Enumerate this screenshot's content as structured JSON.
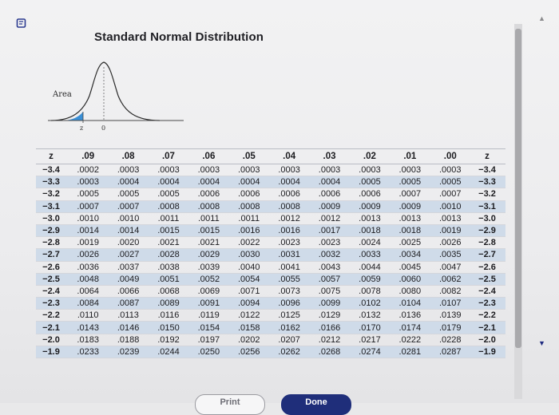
{
  "header": {
    "title": "Standard Normal Distribution",
    "curve_area_label": "Area",
    "curve_z_label": "z",
    "curve_zero_label": "0"
  },
  "table": {
    "columns": [
      "z",
      ".09",
      ".08",
      ".07",
      ".06",
      ".05",
      ".04",
      ".03",
      ".02",
      ".01",
      ".00",
      "z"
    ],
    "rows": [
      {
        "z": "−3.4",
        "values": [
          ".0002",
          ".0003",
          ".0003",
          ".0003",
          ".0003",
          ".0003",
          ".0003",
          ".0003",
          ".0003",
          ".0003"
        ],
        "z_right": "−3.4",
        "highlight": false
      },
      {
        "z": "−3.3",
        "values": [
          ".0003",
          ".0004",
          ".0004",
          ".0004",
          ".0004",
          ".0004",
          ".0004",
          ".0005",
          ".0005",
          ".0005"
        ],
        "z_right": "−3.3",
        "highlight": true
      },
      {
        "z": "−3.2",
        "values": [
          ".0005",
          ".0005",
          ".0005",
          ".0006",
          ".0006",
          ".0006",
          ".0006",
          ".0006",
          ".0007",
          ".0007"
        ],
        "z_right": "−3.2",
        "highlight": false
      },
      {
        "z": "−3.1",
        "values": [
          ".0007",
          ".0007",
          ".0008",
          ".0008",
          ".0008",
          ".0008",
          ".0009",
          ".0009",
          ".0009",
          ".0010"
        ],
        "z_right": "−3.1",
        "highlight": true
      },
      {
        "z": "−3.0",
        "values": [
          ".0010",
          ".0010",
          ".0011",
          ".0011",
          ".0011",
          ".0012",
          ".0012",
          ".0013",
          ".0013",
          ".0013"
        ],
        "z_right": "−3.0",
        "highlight": false
      },
      {
        "z": "−2.9",
        "values": [
          ".0014",
          ".0014",
          ".0015",
          ".0015",
          ".0016",
          ".0016",
          ".0017",
          ".0018",
          ".0018",
          ".0019"
        ],
        "z_right": "−2.9",
        "highlight": true
      },
      {
        "z": "−2.8",
        "values": [
          ".0019",
          ".0020",
          ".0021",
          ".0021",
          ".0022",
          ".0023",
          ".0023",
          ".0024",
          ".0025",
          ".0026"
        ],
        "z_right": "−2.8",
        "highlight": false
      },
      {
        "z": "−2.7",
        "values": [
          ".0026",
          ".0027",
          ".0028",
          ".0029",
          ".0030",
          ".0031",
          ".0032",
          ".0033",
          ".0034",
          ".0035"
        ],
        "z_right": "−2.7",
        "highlight": true
      },
      {
        "z": "−2.6",
        "values": [
          ".0036",
          ".0037",
          ".0038",
          ".0039",
          ".0040",
          ".0041",
          ".0043",
          ".0044",
          ".0045",
          ".0047"
        ],
        "z_right": "−2.6",
        "highlight": false
      },
      {
        "z": "−2.5",
        "values": [
          ".0048",
          ".0049",
          ".0051",
          ".0052",
          ".0054",
          ".0055",
          ".0057",
          ".0059",
          ".0060",
          ".0062"
        ],
        "z_right": "−2.5",
        "highlight": true
      },
      {
        "z": "−2.4",
        "values": [
          ".0064",
          ".0066",
          ".0068",
          ".0069",
          ".0071",
          ".0073",
          ".0075",
          ".0078",
          ".0080",
          ".0082"
        ],
        "z_right": "−2.4",
        "highlight": false
      },
      {
        "z": "−2.3",
        "values": [
          ".0084",
          ".0087",
          ".0089",
          ".0091",
          ".0094",
          ".0096",
          ".0099",
          ".0102",
          ".0104",
          ".0107"
        ],
        "z_right": "−2.3",
        "highlight": true
      },
      {
        "z": "−2.2",
        "values": [
          ".0110",
          ".0113",
          ".0116",
          ".0119",
          ".0122",
          ".0125",
          ".0129",
          ".0132",
          ".0136",
          ".0139"
        ],
        "z_right": "−2.2",
        "highlight": false
      },
      {
        "z": "−2.1",
        "values": [
          ".0143",
          ".0146",
          ".0150",
          ".0154",
          ".0158",
          ".0162",
          ".0166",
          ".0170",
          ".0174",
          ".0179"
        ],
        "z_right": "−2.1",
        "highlight": true
      },
      {
        "z": "−2.0",
        "values": [
          ".0183",
          ".0188",
          ".0192",
          ".0197",
          ".0202",
          ".0207",
          ".0212",
          ".0217",
          ".0222",
          ".0228"
        ],
        "z_right": "−2.0",
        "highlight": false
      },
      {
        "z": "−1.9",
        "values": [
          ".0233",
          ".0239",
          ".0244",
          ".0250",
          ".0256",
          ".0262",
          ".0268",
          ".0274",
          ".0281",
          ".0287"
        ],
        "z_right": "−1.9",
        "highlight": true
      }
    ]
  },
  "buttons": {
    "print_label": "Print",
    "done_label": "Done"
  },
  "icons": {
    "app": "book-icon",
    "scroll_up": "triangle-up-icon",
    "scroll_down": "triangle-down-icon"
  },
  "colors": {
    "row_highlight": "#cfdbe9",
    "curve_fill": "#3a8fd6",
    "done_button": "#1f2e7a"
  }
}
